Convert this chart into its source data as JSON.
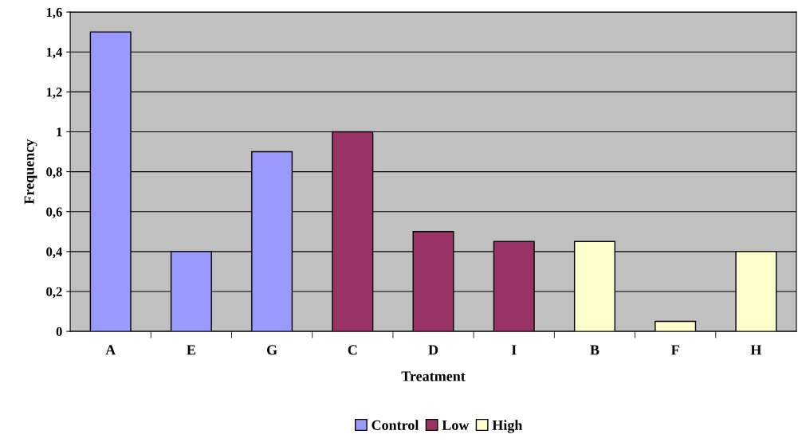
{
  "chart_data": {
    "type": "bar",
    "xlabel": "Treatment",
    "ylabel": "Frequency",
    "categories": [
      "A",
      "E",
      "G",
      "C",
      "D",
      "I",
      "B",
      "F",
      "H"
    ],
    "series": [
      {
        "name": "Control",
        "color": "#9999ff",
        "values": [
          1.5,
          0.4,
          0.9,
          null,
          null,
          null,
          null,
          null,
          null
        ]
      },
      {
        "name": "Low",
        "color": "#993366",
        "values": [
          null,
          null,
          null,
          1.0,
          0.5,
          0.45,
          null,
          null,
          null
        ]
      },
      {
        "name": "High",
        "color": "#ffffcc",
        "values": [
          null,
          null,
          null,
          null,
          null,
          null,
          0.45,
          0.05,
          0.4
        ]
      }
    ],
    "ylim": [
      0,
      1.6
    ],
    "yticks": [
      0,
      {
        "value": 0.2,
        "label": "0,2"
      },
      {
        "value": 0.4,
        "label": "0,4"
      },
      {
        "value": 0.6,
        "label": "0,6"
      },
      {
        "value": 0.8,
        "label": "0,8"
      },
      1,
      {
        "value": 1.2,
        "label": "1,2"
      },
      {
        "value": 1.4,
        "label": "1,4"
      },
      {
        "value": 1.6,
        "label": "1,6"
      }
    ],
    "grid": "y",
    "legend": "bottom"
  }
}
